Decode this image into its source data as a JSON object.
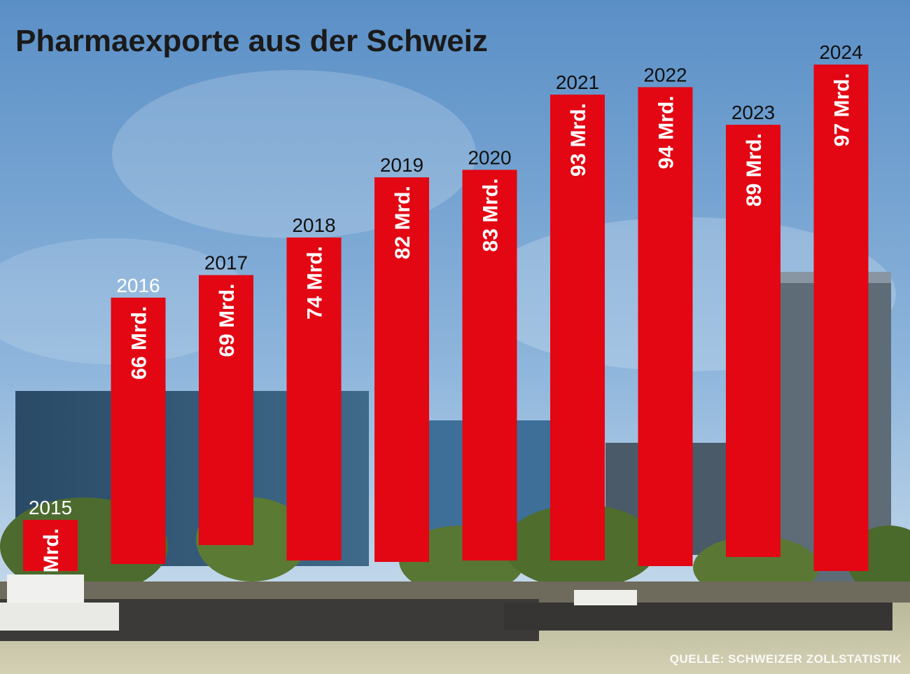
{
  "chart_data": {
    "type": "bar",
    "title": "Pharmaexporte aus der Schweiz",
    "categories": [
      "2015",
      "2016",
      "2017",
      "2018",
      "2019",
      "2020",
      "2021",
      "2022",
      "2023",
      "2024"
    ],
    "values": [
      0,
      66,
      69,
      74,
      82,
      83,
      93,
      94,
      89,
      97
    ],
    "data_labels": [
      "Mrd.",
      "66 Mrd.",
      "69 Mrd.",
      "74 Mrd.",
      "82 Mrd.",
      "83 Mrd.",
      "93 Mrd.",
      "94 Mrd.",
      "89 Mrd.",
      "97 Mrd."
    ],
    "source": "QUELLE: SCHWEIZER ZOLLSTATISTIK",
    "grid": false,
    "legend": "none"
  },
  "colors": {
    "bar": "#e30613",
    "sky_top": "#5f93c8",
    "sky_bottom": "#c9dcec",
    "water": "#c9c6a8"
  }
}
